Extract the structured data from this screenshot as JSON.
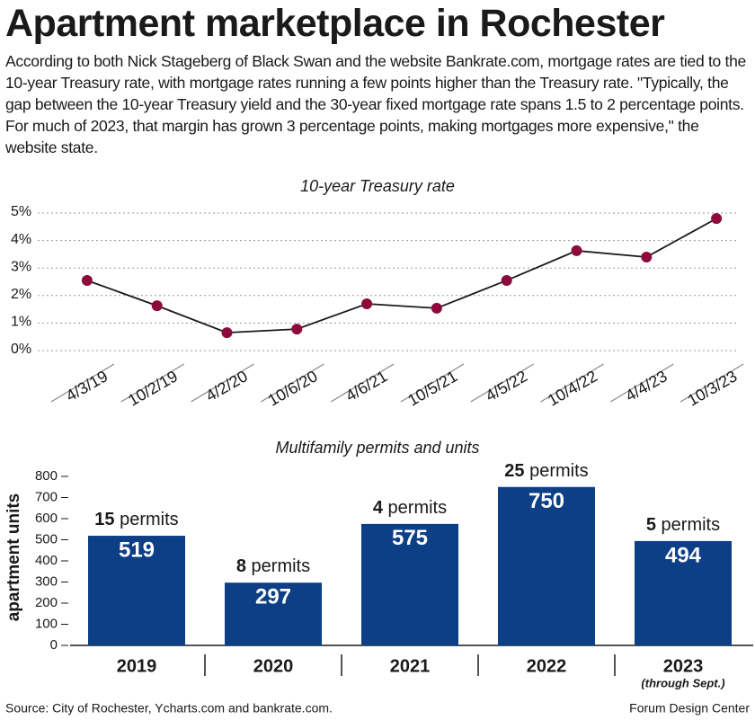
{
  "title": "Apartment marketplace in Rochester",
  "intro": "According to both Nick Stageberg of Black Swan and the website Bankrate.com, mortgage rates are tied to the 10-year Treasury rate, with mortgage rates running a few points higher than the Treasury rate. \"Typically, the gap between the 10-year Treasury yield and the 30-year fixed mortgage rate spans 1.5 to 2 percentage points. For much of 2023, that margin has grown 3 percentage points, making mortgages more expensive,\" the website state.",
  "source": "Source: City of Rochester, Ycharts.com and bankrate.com.",
  "credit": "Forum Design Center",
  "chart_data": [
    {
      "type": "line",
      "title": "10-year Treasury rate",
      "categories": [
        "4/3/19",
        "10/2/19",
        "4/2/20",
        "10/6/20",
        "4/6/21",
        "10/5/21",
        "4/5/22",
        "10/4/22",
        "4/4/23",
        "10/3/23"
      ],
      "values": [
        2.55,
        1.63,
        0.65,
        0.78,
        1.7,
        1.54,
        2.55,
        3.63,
        3.4,
        4.8
      ],
      "color": "#8c0b3c",
      "ylim": [
        0,
        5
      ],
      "yticks": [
        {
          "value": 0,
          "label": "0%"
        },
        {
          "value": 1,
          "label": "1%"
        },
        {
          "value": 2,
          "label": "2%"
        },
        {
          "value": 3,
          "label": "3%"
        },
        {
          "value": 4,
          "label": "4%"
        },
        {
          "value": 5,
          "label": "5%"
        }
      ],
      "grid": true
    },
    {
      "type": "bar",
      "title": "Multifamily permits and units",
      "y_label": "apartment units",
      "categories": [
        "2019",
        "2020",
        "2021",
        "2022",
        "2023"
      ],
      "category_notes": [
        null,
        null,
        null,
        null,
        "(through Sept.)"
      ],
      "values": [
        519,
        297,
        575,
        750,
        494
      ],
      "permits": [
        15,
        8,
        4,
        25,
        5
      ],
      "permits_label": "permits",
      "color": "#0d3f86",
      "ylim": [
        0,
        800
      ],
      "yticks": [
        0,
        100,
        200,
        300,
        400,
        500,
        600,
        700,
        800
      ],
      "grid": false
    }
  ]
}
